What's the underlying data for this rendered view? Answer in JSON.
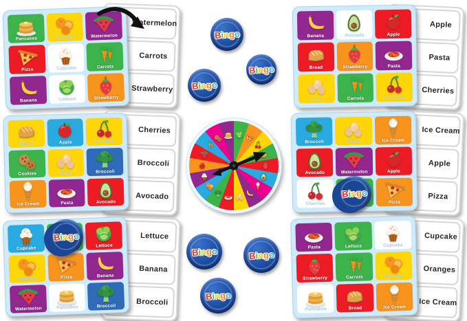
{
  "product": {
    "name": "Bingo"
  },
  "chip": {
    "word": "Bingo",
    "letters": [
      {
        "ch": "B",
        "color": "#e0312e"
      },
      {
        "ch": "i",
        "color": "#56b947"
      },
      {
        "ch": "n",
        "color": "#ffc913"
      },
      {
        "ch": "g",
        "color": "#f58220"
      },
      {
        "ch": "o",
        "color": "#3fa9d9"
      }
    ]
  },
  "palette": {
    "green": "#3cb44b",
    "yellow": "#ffd60a",
    "purple": "#92278f",
    "red": "#ed1c24",
    "white": "#ffffff",
    "orange": "#f7941e",
    "cyan": "#29abe2",
    "blue": "#2f6bb8",
    "chip_blue": "#1c4da2",
    "card_border_blue": "#cfeafa"
  },
  "cards": [
    {
      "id": "top-left",
      "cells": [
        {
          "label": "Pancakes",
          "food": "pancakes",
          "bg": "green"
        },
        {
          "label": "Oranges",
          "food": "oranges",
          "bg": "yellow"
        },
        {
          "label": "Watermelon",
          "food": "watermelon",
          "bg": "purple"
        },
        {
          "label": "Pizza",
          "food": "pizza",
          "bg": "red"
        },
        {
          "label": "Cupcake",
          "food": "cupcake",
          "bg": "white"
        },
        {
          "label": "Carrots",
          "food": "carrots",
          "bg": "green"
        },
        {
          "label": "Banana",
          "food": "banana",
          "bg": "purple"
        },
        {
          "label": "Lettuce",
          "food": "lettuce",
          "bg": "white"
        },
        {
          "label": "Strawberry",
          "food": "strawberry",
          "bg": "orange"
        }
      ],
      "answers": [
        "Watermelon",
        "Carrots",
        "Strawberry"
      ],
      "chip_cell": null,
      "arrow_to_answer": true
    },
    {
      "id": "top-right",
      "cells": [
        {
          "label": "Banana",
          "food": "banana",
          "bg": "purple"
        },
        {
          "label": "Avocado",
          "food": "avocado",
          "bg": "white"
        },
        {
          "label": "Apple",
          "food": "apple",
          "bg": "red"
        },
        {
          "label": "Bread",
          "food": "bread",
          "bg": "red"
        },
        {
          "label": "Strawberry",
          "food": "strawberry",
          "bg": "orange"
        },
        {
          "label": "Pasta",
          "food": "pasta",
          "bg": "purple"
        },
        {
          "label": "Eggs",
          "food": "eggs",
          "bg": "yellow"
        },
        {
          "label": "Carrots",
          "food": "carrots",
          "bg": "green"
        },
        {
          "label": "Cherries",
          "food": "cherries",
          "bg": "yellow"
        }
      ],
      "answers": [
        "Apple",
        "Pasta",
        "Cherries"
      ],
      "chip_cell": null,
      "arrow_to_answer": false
    },
    {
      "id": "middle-left",
      "cells": [
        {
          "label": "Bread",
          "food": "bread",
          "bg": "yellow"
        },
        {
          "label": "Apple",
          "food": "apple",
          "bg": "cyan"
        },
        {
          "label": "Cherries",
          "food": "cherries",
          "bg": "yellow"
        },
        {
          "label": "Cookies",
          "food": "cookies",
          "bg": "green"
        },
        {
          "label": "Eggs",
          "food": "eggs",
          "bg": "yellow"
        },
        {
          "label": "Broccoli",
          "food": "broccoli",
          "bg": "blue"
        },
        {
          "label": "Ice Cream",
          "food": "icecream",
          "bg": "orange"
        },
        {
          "label": "Pasta",
          "food": "pasta",
          "bg": "purple"
        },
        {
          "label": "Avocado",
          "food": "avocado",
          "bg": "red"
        }
      ],
      "answers": [
        "Cherries",
        "Broccoli",
        "Avocado"
      ],
      "chip_cell": null,
      "arrow_to_answer": false
    },
    {
      "id": "middle-right",
      "cells": [
        {
          "label": "Broccoli",
          "food": "broccoli",
          "bg": "cyan"
        },
        {
          "label": "Eggs",
          "food": "eggs",
          "bg": "yellow"
        },
        {
          "label": "Ice Cream",
          "food": "icecream",
          "bg": "orange"
        },
        {
          "label": "Avocado",
          "food": "avocado",
          "bg": "red"
        },
        {
          "label": "Watermelon",
          "food": "watermelon",
          "bg": "purple"
        },
        {
          "label": "Apple",
          "food": "apple",
          "bg": "red"
        },
        {
          "label": "Cherries",
          "food": "cherries",
          "bg": "white"
        },
        {
          "label": "Carrots",
          "food": "carrots",
          "bg": "green"
        },
        {
          "label": "Pizza",
          "food": "pizza",
          "bg": "orange"
        }
      ],
      "answers": [
        "Ice Cream",
        "Apple",
        "Pizza"
      ],
      "chip_cell": 7,
      "arrow_to_answer": false
    },
    {
      "id": "bottom-left",
      "cells": [
        {
          "label": "Cupcake",
          "food": "cupcake",
          "bg": "cyan"
        },
        {
          "label": "Cookies",
          "food": "cookies",
          "bg": "green"
        },
        {
          "label": "Lettuce",
          "food": "lettuce",
          "bg": "red"
        },
        {
          "label": "Oranges",
          "food": "oranges",
          "bg": "yellow"
        },
        {
          "label": "Pizza",
          "food": "pizza",
          "bg": "orange"
        },
        {
          "label": "Banana",
          "food": "banana",
          "bg": "purple"
        },
        {
          "label": "Watermelon",
          "food": "watermelon",
          "bg": "purple"
        },
        {
          "label": "Pancakes",
          "food": "pancakes",
          "bg": "white"
        },
        {
          "label": "Broccoli",
          "food": "broccoli",
          "bg": "blue"
        }
      ],
      "answers": [
        "Lettuce",
        "Banana",
        "Broccoli"
      ],
      "chip_cell": 1,
      "arrow_to_answer": false
    },
    {
      "id": "bottom-right",
      "cells": [
        {
          "label": "Pasta",
          "food": "pasta",
          "bg": "purple"
        },
        {
          "label": "Lettuce",
          "food": "lettuce",
          "bg": "green"
        },
        {
          "label": "Cupcake",
          "food": "cupcake",
          "bg": "white"
        },
        {
          "label": "Strawberry",
          "food": "strawberry",
          "bg": "red"
        },
        {
          "label": "Carrots",
          "food": "carrots",
          "bg": "green"
        },
        {
          "label": "Oranges",
          "food": "oranges",
          "bg": "yellow"
        },
        {
          "label": "Pancakes",
          "food": "pancakes",
          "bg": "white"
        },
        {
          "label": "Bread",
          "food": "bread",
          "bg": "red"
        },
        {
          "label": "Ice Cream",
          "food": "icecream",
          "bg": "orange"
        }
      ],
      "answers": [
        "Cupcake",
        "Oranges",
        "Ice Cream"
      ],
      "chip_cell": null,
      "arrow_to_answer": false
    }
  ],
  "spinner": {
    "segment_count": 18,
    "segments": [
      {
        "color": "#3cb44b",
        "food": "lettuce"
      },
      {
        "color": "#f7941e",
        "food": "pizza"
      },
      {
        "color": "#ffd60a",
        "food": "cherries"
      },
      {
        "color": "#3cb44b",
        "food": "bread"
      },
      {
        "color": "#ed1c24",
        "food": "strawberry"
      },
      {
        "color": "#29abe2",
        "food": "avocado"
      },
      {
        "color": "#ec008c",
        "food": "icecream"
      },
      {
        "color": "#92278f",
        "food": "banana"
      },
      {
        "color": "#ffd60a",
        "food": "eggs"
      },
      {
        "color": "#ed1c24",
        "food": "pasta"
      },
      {
        "color": "#3cb44b",
        "food": "broccoli"
      },
      {
        "color": "#29abe2",
        "food": "oranges"
      },
      {
        "color": "#92278f",
        "food": "cupcake"
      },
      {
        "color": "#f7941e",
        "food": "apple"
      },
      {
        "color": "#ed1c24",
        "food": "watermelon"
      },
      {
        "color": "#29abe2",
        "food": "carrots"
      },
      {
        "color": "#ec008c",
        "food": "cookies"
      },
      {
        "color": "#92278f",
        "food": "pancakes"
      }
    ]
  },
  "loose_chips": {
    "top_count": 3,
    "bottom_count": 3
  }
}
